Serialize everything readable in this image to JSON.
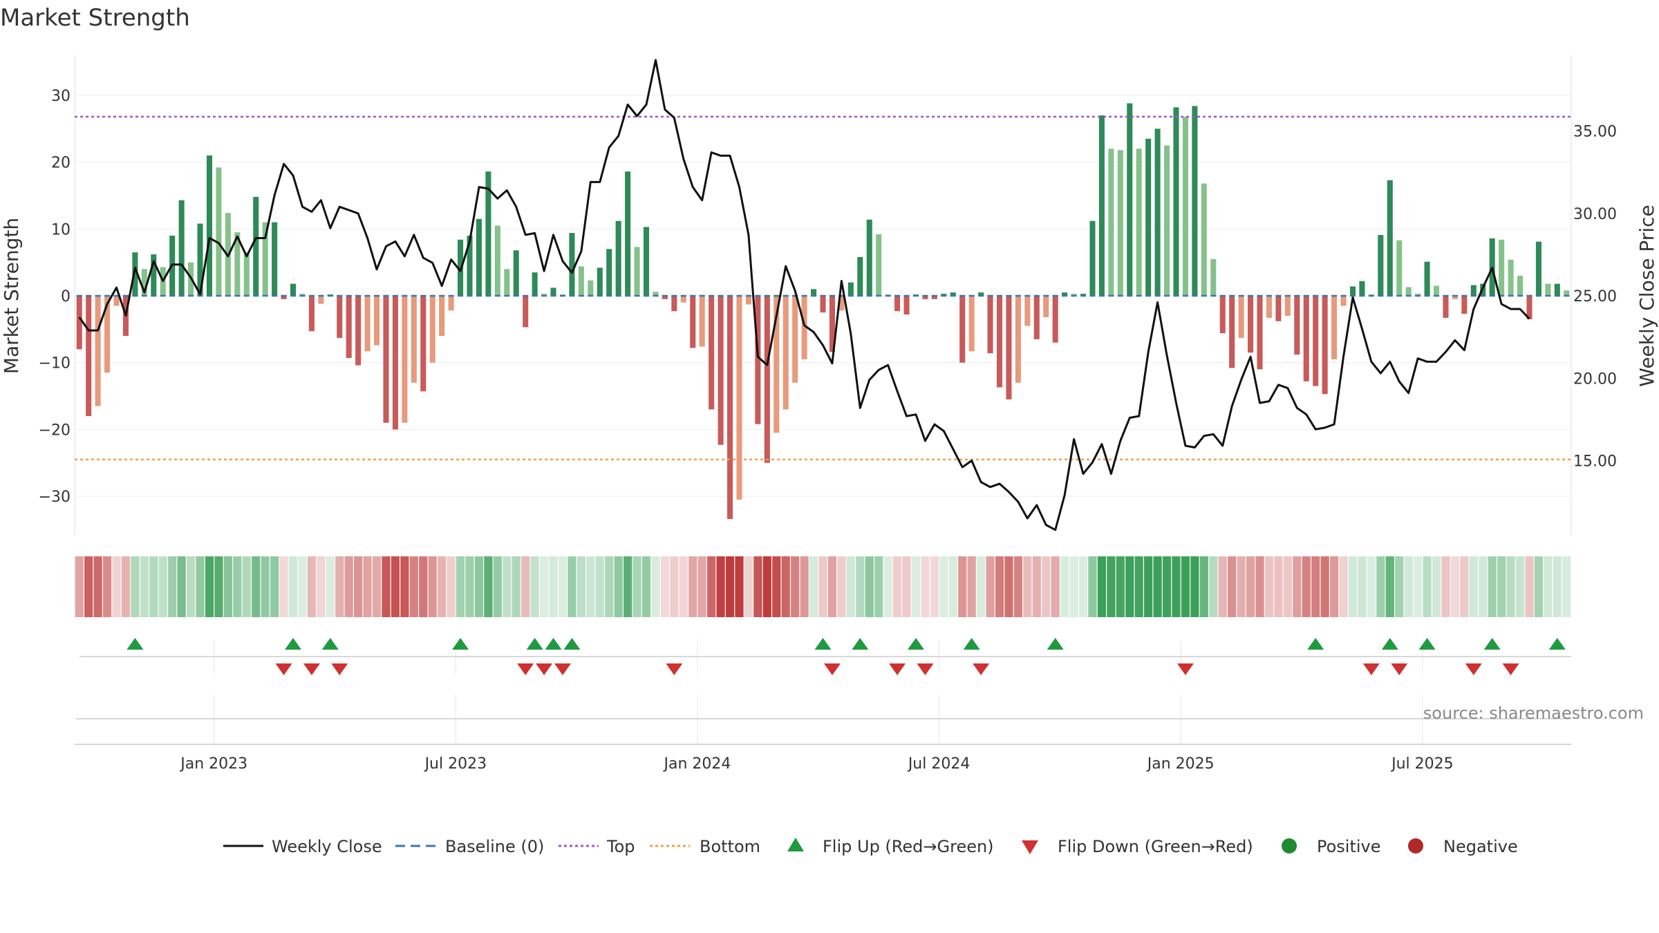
{
  "title": "Market Strength",
  "source": "source: sharemaestro.com",
  "chart_data": {
    "type": "bar",
    "title": "Market Strength",
    "ylabel": "Market Strength",
    "y2label": "Weekly Close Price",
    "ylim": [
      -36,
      36
    ],
    "y2lim": [
      10.3,
      40.5
    ],
    "yticks": [
      30,
      20,
      10,
      0,
      -10,
      -20,
      -30
    ],
    "yticklabels": [
      "30",
      "20",
      "10",
      "0",
      "−10",
      "−20",
      "−30"
    ],
    "y2ticks": [
      35,
      30,
      25,
      20,
      15
    ],
    "y2ticklabels": [
      "35.00",
      "30.00",
      "25.00",
      "20.00",
      "15.00"
    ],
    "top_line": 26.8,
    "bottom_line": -24.5,
    "x_date_ticks": [
      {
        "label": "Jan 2023",
        "week": 15
      },
      {
        "label": "Jul 2023",
        "week": 41
      },
      {
        "label": "Jan 2024",
        "week": 67
      },
      {
        "label": "Jul 2024",
        "week": 93
      },
      {
        "label": "Jan 2025",
        "week": 119
      },
      {
        "label": "Jul 2025",
        "week": 145
      }
    ],
    "strength": [
      -8,
      -18,
      -16.5,
      -11.5,
      -1.5,
      -6,
      6.5,
      4,
      6.2,
      4.3,
      9,
      14.3,
      5,
      10.8,
      21,
      19.2,
      12.4,
      9.5,
      6.5,
      14.8,
      11,
      11,
      -0.5,
      1.8,
      0.3,
      -5.3,
      -1.2,
      0.2,
      -6.3,
      -9.3,
      -10.4,
      -8.3,
      -7.4,
      -19,
      -20,
      -19,
      -13,
      -14.3,
      -10,
      -6,
      -2.2,
      8.4,
      9,
      11.5,
      18.6,
      10.5,
      4,
      6.8,
      -4.7,
      3.5,
      0.3,
      1.2,
      0.2,
      9.4,
      4.4,
      2.3,
      4.2,
      7,
      11.2,
      18.6,
      7.3,
      10.3,
      0.6,
      -0.5,
      -2.3,
      -1,
      -7.8,
      -7.6,
      -17,
      -22.3,
      -33.4,
      -30.5,
      -1.3,
      -19.2,
      -25,
      -20.5,
      -17,
      -13,
      -9.5,
      1,
      -2.5,
      -8.4,
      -2.2,
      2,
      5.8,
      11.4,
      9.2,
      0.2,
      -2.3,
      -2.8,
      0.2,
      -0.5,
      -0.5,
      0.3,
      0.5,
      -10,
      -8.3,
      0.5,
      -8.6,
      -13.7,
      -15.5,
      -13,
      -4.5,
      -6.5,
      -3.2,
      -7,
      0.5,
      0.3,
      0.3,
      11.2,
      27,
      22,
      21.8,
      28.8,
      22,
      23.5,
      25,
      22.5,
      28.2,
      26.8,
      28.4,
      16.8,
      5.5,
      -5.6,
      -10.8,
      -6.3,
      -8.5,
      -11,
      -3.3,
      -3.8,
      -3,
      -8.8,
      -12.8,
      -13.5,
      -14.7,
      -9.5,
      -1.5,
      1.4,
      2.2,
      0.2,
      9.1,
      17.3,
      8.3,
      1.3,
      0.3,
      5.1,
      1.5,
      -3.3,
      -0.5,
      -2.7,
      1.6,
      1.8,
      8.6,
      8.4,
      5.4,
      3,
      -3.5,
      8.1,
      1.8,
      1.8,
      0.8
    ],
    "weekly_close": [
      23.7,
      22.9,
      22.9,
      24.5,
      25.5,
      23.8,
      26.7,
      25.2,
      27.1,
      25.9,
      26.9,
      26.9,
      26.1,
      25.1,
      28.5,
      28.2,
      27.4,
      28.6,
      27.4,
      28.5,
      28.5,
      31.1,
      33,
      32.3,
      30.4,
      30.1,
      30.8,
      29.1,
      30.4,
      30.2,
      30,
      28.5,
      26.6,
      28,
      28.3,
      27.4,
      28.7,
      27.3,
      27,
      25.6,
      27.2,
      26.5,
      28.3,
      31.6,
      31.5,
      30.9,
      31.4,
      30.4,
      28.7,
      28.8,
      26.5,
      28.7,
      27.1,
      26.4,
      27.7,
      31.9,
      31.9,
      34,
      34.7,
      36.6,
      35.9,
      36.6,
      39.3,
      36.3,
      35.8,
      33.3,
      31.6,
      30.8,
      33.7,
      33.5,
      33.5,
      31.6,
      28.7,
      21.3,
      20.8,
      23.8,
      26.8,
      25.3,
      23.2,
      22.8,
      22,
      20.9,
      25.9,
      22.7,
      18.2,
      19.9,
      20.5,
      20.8,
      19.2,
      17.7,
      17.8,
      16.2,
      17.2,
      16.8,
      15.7,
      14.6,
      15,
      13.7,
      13.4,
      13.6,
      13.1,
      12.5,
      11.5,
      12.3,
      11.1,
      10.8,
      12.9,
      16.3,
      14.2,
      14.9,
      16,
      14.2,
      16.2,
      17.6,
      17.7,
      21.6,
      24.6,
      21.4,
      18.5,
      15.9,
      15.8,
      16.5,
      16.6,
      15.9,
      18.3,
      19.9,
      21.3,
      18.5,
      18.6,
      19.6,
      19.4,
      18.2,
      17.8,
      16.9,
      17,
      17.2,
      21.3,
      24.9,
      23,
      21,
      20.3,
      21,
      19.8,
      19.1,
      21.2,
      21,
      21,
      21.6,
      22.3,
      21.7,
      24.2,
      25.5,
      26.7,
      24.5,
      24.2,
      24.2,
      23.6
    ],
    "flip_up_weeks": [
      6,
      23,
      27,
      41,
      49,
      51,
      53,
      80,
      84,
      90,
      96,
      105,
      133,
      141,
      145,
      152,
      159
    ],
    "flip_down_weeks": [
      22,
      25,
      28,
      48,
      50,
      52,
      64,
      81,
      88,
      91,
      97,
      119,
      139,
      142,
      150,
      154
    ],
    "legend": [
      "Weekly Close",
      "Baseline (0)",
      "Top",
      "Bottom",
      "Flip Up (Red→Green)",
      "Flip Down (Green→Red)",
      "Positive",
      "Negative"
    ]
  },
  "colors": {
    "close": "#111111",
    "baseline": "#3b78a8",
    "top": "#9b59c8",
    "bottom": "#f0a050",
    "flip_up": "#1f9a3f",
    "flip_down": "#d03030",
    "positive": "#1f8a2f",
    "negative": "#b0282a"
  }
}
